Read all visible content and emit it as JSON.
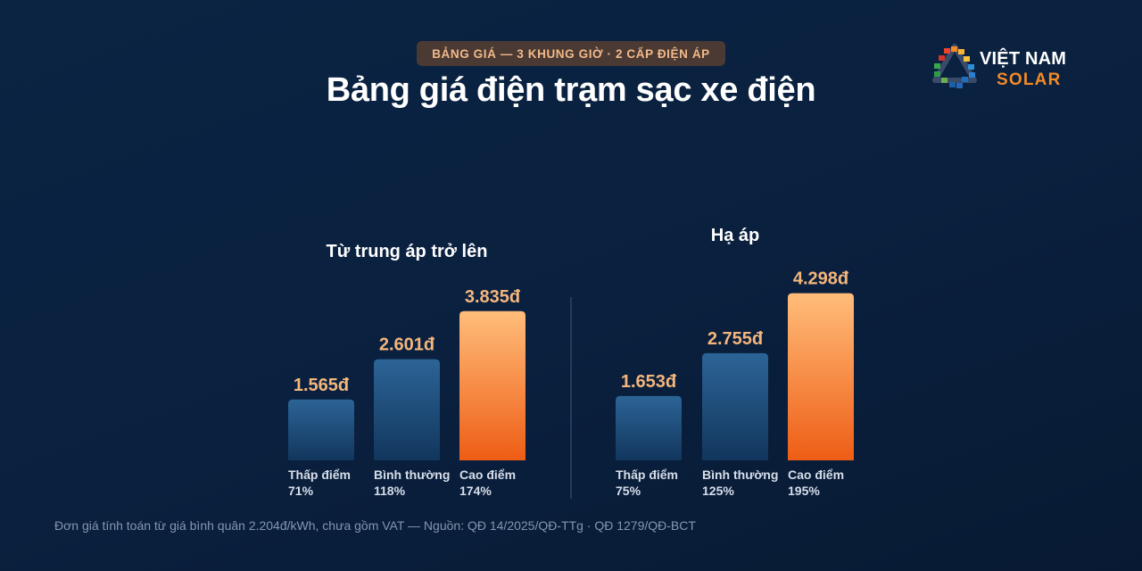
{
  "header": {
    "badge": "BẢNG GIÁ — 3 KHUNG GIỜ · 2 CẤP ĐIỆN ÁP",
    "title": "Bảng giá điện trạm sạc xe điện"
  },
  "logo": {
    "line1": "VIỆT NAM",
    "line2": "SOLAR"
  },
  "colors": {
    "background": "#0a2140",
    "bar_blue_top": "#2c6496",
    "bar_blue_bottom": "#12365d",
    "bar_orange_top": "#ffbd7a",
    "bar_orange_bottom": "#ee5d15",
    "value_label": "#f4b67c",
    "badge_text": "#f2b98a",
    "logo_orange": "#f58a24"
  },
  "chart_data": [
    {
      "type": "bar",
      "title": "Từ trung áp trở lên",
      "unit": "đ",
      "categories": [
        "Thấp điểm",
        "Bình thường",
        "Cao điểm"
      ],
      "percent_labels": [
        "71%",
        "118%",
        "174%"
      ],
      "values": [
        1565,
        2601,
        3835
      ],
      "value_labels": [
        "1.565đ",
        "2.601đ",
        "3.835đ"
      ],
      "highlight": [
        false,
        false,
        true
      ]
    },
    {
      "type": "bar",
      "title": "Hạ áp",
      "unit": "đ",
      "categories": [
        "Thấp điểm",
        "Bình thường",
        "Cao điểm"
      ],
      "percent_labels": [
        "75%",
        "125%",
        "195%"
      ],
      "values": [
        1653,
        2755,
        4298
      ],
      "value_labels": [
        "1.653đ",
        "2.755đ",
        "4.298đ"
      ],
      "highlight": [
        false,
        false,
        true
      ]
    }
  ],
  "footnote": "Đơn giá tính toán từ giá bình quân 2.204đ/kWh, chưa gồm VAT — Nguồn: QĐ 14/2025/QĐ-TTg · QĐ 1279/QĐ-BCT"
}
